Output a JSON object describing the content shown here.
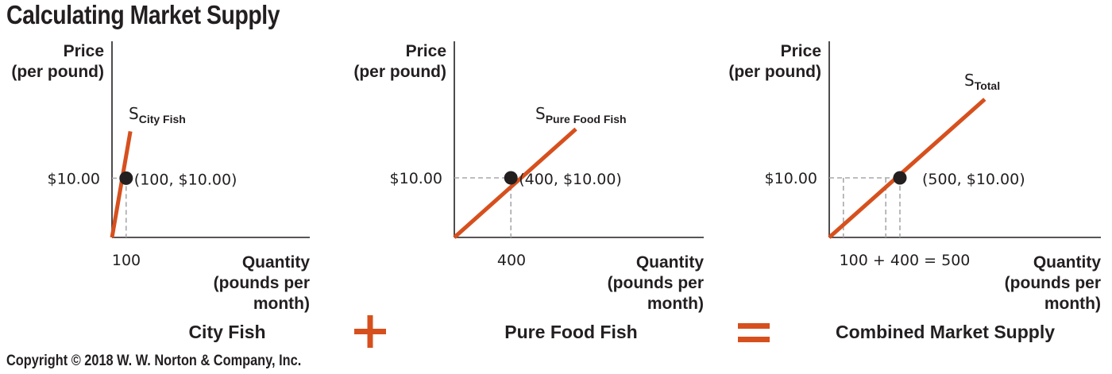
{
  "title": "Calculating Market Supply",
  "copyright": "Copyright © 2018 W. W. Norton & Company, Inc.",
  "colors": {
    "supply_line": "#d6501e",
    "axis": "#231f20",
    "guide": "#a7a9ac",
    "operator": "#d6501e"
  },
  "operators": {
    "plus": "+",
    "equals": "="
  },
  "chart_data": [
    {
      "type": "line",
      "panel_label": "City Fish",
      "ylabel": [
        "Price",
        "(per pound)"
      ],
      "xlabel": [
        "Quantity",
        "(pounds per",
        "month)"
      ],
      "series": [
        {
          "name": "S",
          "name_sub": "City Fish",
          "x": [
            0,
            130
          ],
          "y": [
            0,
            17.9
          ]
        }
      ],
      "point": {
        "x": 100,
        "y": 10.0,
        "label": "(100, $10.00)"
      },
      "y_tick_label": "$10.00",
      "x_tick_label": "100"
    },
    {
      "type": "line",
      "panel_label": "Pure Food Fish",
      "ylabel": [
        "Price",
        "(per pound)"
      ],
      "xlabel": [
        "Quantity",
        "(pounds per",
        "month)"
      ],
      "series": [
        {
          "name": "S",
          "name_sub": "Pure Food Fish",
          "x": [
            0,
            860
          ],
          "y": [
            0,
            18.2
          ]
        }
      ],
      "point": {
        "x": 400,
        "y": 10.0,
        "label": "(400, $10.00)"
      },
      "y_tick_label": "$10.00",
      "x_tick_label": "400"
    },
    {
      "type": "line",
      "panel_label": "Combined Market Supply",
      "ylabel": [
        "Price",
        "(per pound)"
      ],
      "xlabel": [
        "Quantity",
        "(pounds per",
        "month)"
      ],
      "series": [
        {
          "name": "S",
          "name_sub": "Total",
          "x": [
            0,
            1100
          ],
          "y": [
            0,
            23.2
          ]
        }
      ],
      "point": {
        "x": 500,
        "y": 10.0,
        "label": "(500, $10.00)"
      },
      "y_tick_label": "$10.00",
      "x_tick_label": "100  +  400  =  500",
      "guide_x": [
        100,
        400,
        500
      ]
    }
  ]
}
